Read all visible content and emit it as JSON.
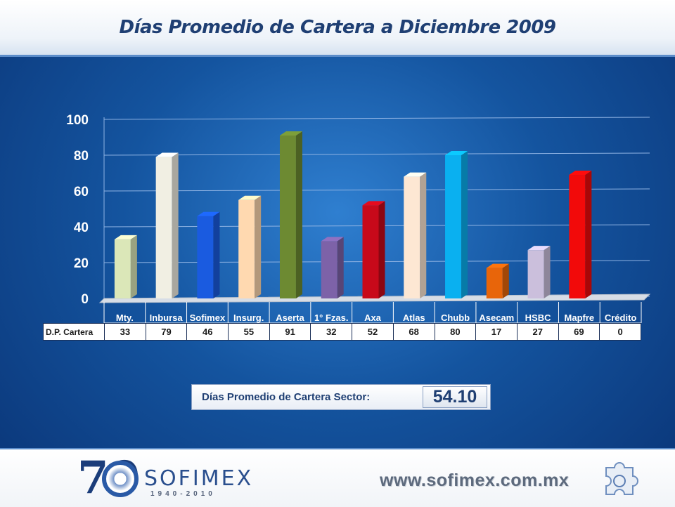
{
  "title": "Días Promedio de Cartera a Diciembre 2009",
  "table": {
    "row_header": "D.P. Cartera"
  },
  "sector": {
    "label": "Días Promedio de Cartera Sector:",
    "value": "54.10"
  },
  "footer": {
    "brand": "SOFIMEX",
    "seventy": "70",
    "years": "1940-2010",
    "website": "www.sofimex.com.mx"
  },
  "icons": [
    "logo-70-seal",
    "puzzle-piece-icon"
  ],
  "chart_data": {
    "type": "bar",
    "categories": [
      "Mty.",
      "Inbursa",
      "Sofimex",
      "Insurg.",
      "Aserta",
      "1° Fzas.",
      "Axa",
      "Atlas",
      "Chubb",
      "Asecam",
      "HSBC",
      "Mapfre",
      "Crédito"
    ],
    "values": [
      33,
      79,
      46,
      55,
      91,
      32,
      52,
      68,
      80,
      17,
      27,
      69,
      0
    ],
    "colors": [
      "#dbe7b8",
      "#f1efe3",
      "#1a5be0",
      "#ffd9b0",
      "#6d8a32",
      "#7d62a8",
      "#c8091a",
      "#fde7d3",
      "#0ab0f0",
      "#e8650a",
      "#cbbfdc",
      "#f20a0a",
      "#9aa0a8"
    ],
    "ylim": [
      0,
      100
    ],
    "yticks": [
      0,
      20,
      40,
      60,
      80,
      100
    ],
    "grid": true,
    "legend": "none"
  }
}
